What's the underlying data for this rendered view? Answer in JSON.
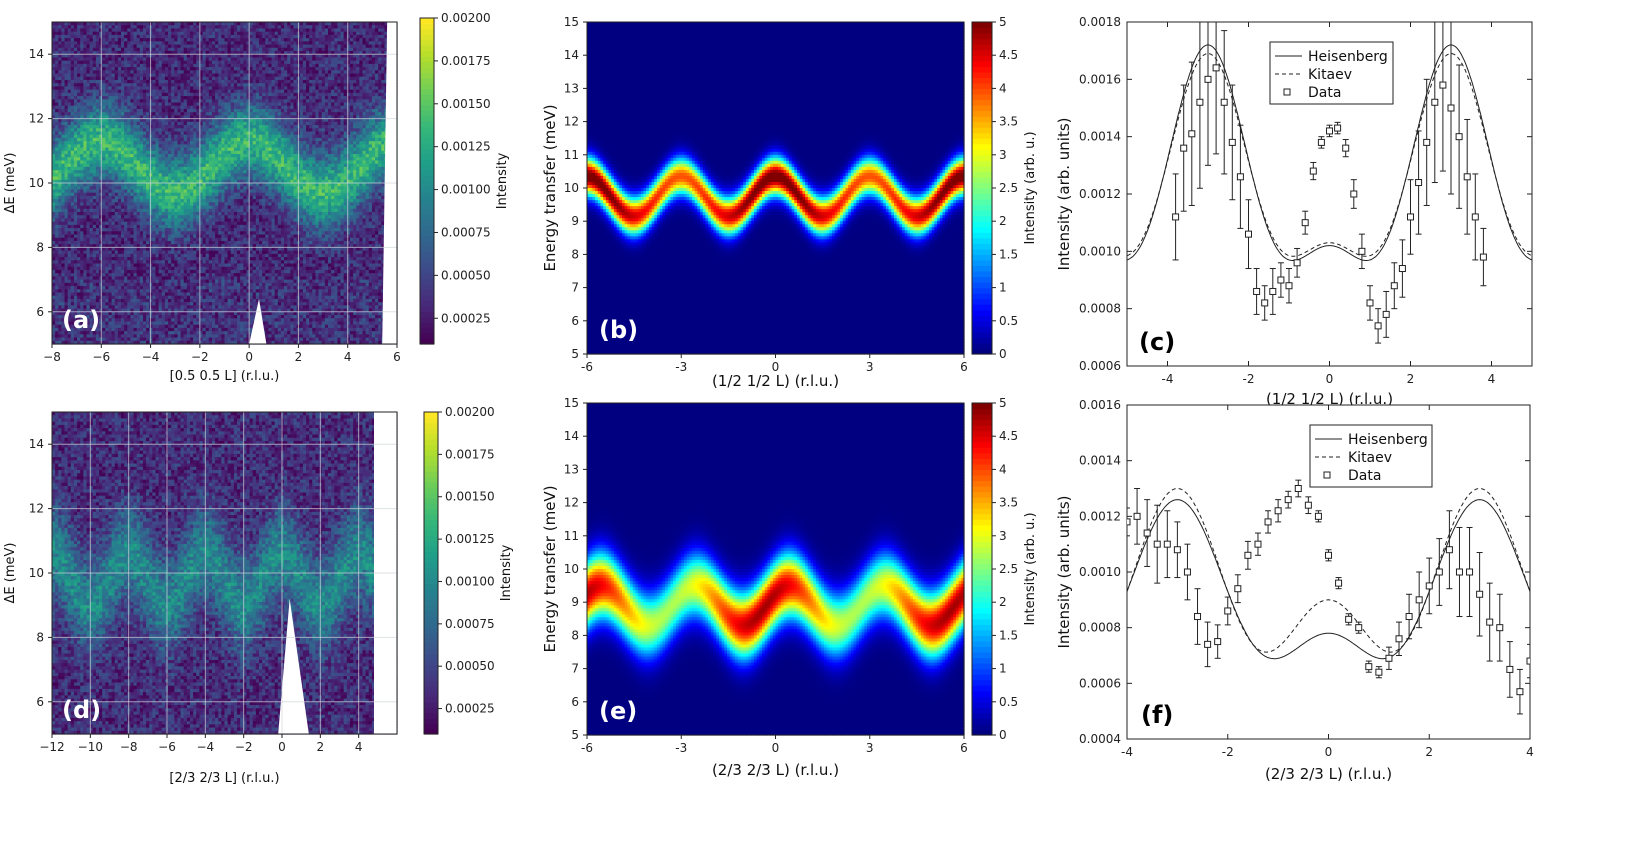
{
  "chart_data": [
    {
      "id": "a",
      "type": "heatmap",
      "panel_label": "(a)",
      "xlabel": "[0.5 0.5 L] (r.l.u.)",
      "ylabel": "ΔE (meV)",
      "xlim": [
        -8,
        6
      ],
      "ylim": [
        5,
        15
      ],
      "xticks": [
        "−8",
        "−6",
        "−4",
        "−2",
        "0",
        "2",
        "4",
        "6"
      ],
      "yticks": [
        "6",
        "8",
        "10",
        "12",
        "14"
      ],
      "colorbar": {
        "label": "Intensity",
        "range": [
          0.0001,
          0.002
        ],
        "ticks": [
          "0.00025",
          "0.00050",
          "0.00075",
          "0.00100",
          "0.00125",
          "0.00150",
          "0.00175",
          "0.00200"
        ]
      },
      "colormap": "viridis",
      "dispersion": {
        "center_meV": 10.5,
        "amplitude_meV": 0.8,
        "period_rlu": 6
      }
    },
    {
      "id": "b",
      "type": "heatmap",
      "panel_label": "(b)",
      "xlabel": "(1/2  1/2  L)  (r.l.u.)",
      "ylabel": "Energy transfer (meV)",
      "xlim": [
        -6,
        6
      ],
      "ylim": [
        5,
        15
      ],
      "xticks": [
        "-6",
        "-3",
        "0",
        "3",
        "6"
      ],
      "yticks": [
        "5",
        "6",
        "7",
        "8",
        "9",
        "10",
        "11",
        "12",
        "13",
        "14",
        "15"
      ],
      "colorbar": {
        "label": "Intensity (arb. u.)",
        "range": [
          0,
          5
        ],
        "ticks": [
          "0",
          "0.5",
          "1",
          "1.5",
          "2",
          "2.5",
          "3",
          "3.5",
          "4",
          "4.5",
          "5"
        ]
      },
      "colormap": "jet",
      "dispersion": {
        "center_meV": 9.75,
        "amplitude_meV": 0.6,
        "period_rlu": 3
      }
    },
    {
      "id": "c",
      "type": "line",
      "panel_label": "(c)",
      "xlabel": "(1/2 1/2 L)  (r.l.u.)",
      "ylabel": "Intensity (arb. units)",
      "xlim": [
        -5,
        5
      ],
      "ylim": [
        0.0006,
        0.0018
      ],
      "xticks": [
        "-4",
        "-2",
        "0",
        "2",
        "4"
      ],
      "yticks": [
        "0.0006",
        "0.0008",
        "0.0010",
        "0.0012",
        "0.0014",
        "0.0016",
        "0.0018"
      ],
      "legend": [
        "Heisenberg",
        "Kitaev",
        "Data"
      ],
      "series": [
        {
          "name": "Heisenberg",
          "model": {
            "mean": 0.00122,
            "a3": 0.00035,
            "a6": 0.00015
          }
        },
        {
          "name": "Kitaev",
          "model": {
            "mean": 0.00122,
            "a3": 0.00033,
            "a6": 0.00014
          }
        },
        {
          "name": "Data",
          "x": [
            -3.8,
            -3.6,
            -3.4,
            -3.2,
            -3.0,
            -2.8,
            -2.6,
            -2.4,
            -2.2,
            -2.0,
            -1.8,
            -1.6,
            -1.4,
            -1.2,
            -1.0,
            -0.8,
            -0.6,
            -0.4,
            -0.2,
            0.0,
            0.2,
            0.4,
            0.6,
            0.8,
            1.0,
            1.2,
            1.4,
            1.6,
            1.8,
            2.0,
            2.2,
            2.4,
            2.6,
            2.8,
            3.0,
            3.2,
            3.4,
            3.6,
            3.8
          ],
          "y": [
            0.00112,
            0.00136,
            0.00141,
            0.00152,
            0.0016,
            0.00164,
            0.00152,
            0.00138,
            0.00126,
            0.00106,
            0.00086,
            0.00082,
            0.00086,
            0.0009,
            0.00088,
            0.00096,
            0.0011,
            0.00128,
            0.00138,
            0.00142,
            0.00143,
            0.00136,
            0.0012,
            0.001,
            0.00082,
            0.00074,
            0.00078,
            0.00088,
            0.00094,
            0.00112,
            0.00124,
            0.00138,
            0.00152,
            0.00158,
            0.0015,
            0.0014,
            0.00126,
            0.00112,
            0.00098
          ],
          "err": [
            0.00015,
            0.00022,
            0.00025,
            0.0003,
            0.0003,
            0.0003,
            0.00025,
            0.0002,
            0.00018,
            0.00012,
            8e-05,
            6e-05,
            8e-05,
            6e-05,
            6e-05,
            5e-05,
            4e-05,
            3e-05,
            2e-05,
            2e-05,
            2e-05,
            3e-05,
            5e-05,
            6e-05,
            6e-05,
            6e-05,
            8e-05,
            8e-05,
            0.0001,
            0.00013,
            0.00018,
            0.00022,
            0.00028,
            0.0003,
            0.0003,
            0.00025,
            0.0002,
            0.00015,
            0.0001
          ]
        }
      ]
    },
    {
      "id": "d",
      "type": "heatmap",
      "panel_label": "(d)",
      "xlabel": "[2/3 2/3 L] (r.l.u.)",
      "ylabel": "ΔE (meV)",
      "xlim": [
        -12,
        6
      ],
      "ylim": [
        5,
        15
      ],
      "xticks": [
        "−12",
        "−10",
        "−8",
        "−6",
        "−4",
        "−2",
        "0",
        "2",
        "4"
      ],
      "yticks": [
        "6",
        "8",
        "10",
        "12",
        "14"
      ],
      "colorbar": {
        "label": "Intensity",
        "range": [
          0.0001,
          0.002
        ],
        "ticks": [
          "0.00025",
          "0.00050",
          "0.00075",
          "0.00100",
          "0.00125",
          "0.00150",
          "0.00175",
          "0.00200"
        ]
      },
      "colormap": "viridis",
      "dispersion": {
        "center_meV": 9.8,
        "amplitude_meV": 0.8,
        "period_rlu": 4
      }
    },
    {
      "id": "e",
      "type": "heatmap",
      "panel_label": "(e)",
      "xlabel": "(2/3  2/3  L)  (r.l.u.)",
      "ylabel": "Energy transfer (meV)",
      "xlim": [
        -6,
        6
      ],
      "ylim": [
        5,
        15
      ],
      "xticks": [
        "-6",
        "-3",
        "0",
        "3",
        "6"
      ],
      "yticks": [
        "5",
        "6",
        "7",
        "8",
        "9",
        "10",
        "11",
        "12",
        "13",
        "14",
        "15"
      ],
      "colorbar": {
        "label": "Intensity (arb. u.)",
        "range": [
          0,
          5
        ],
        "ticks": [
          "0",
          "0.5",
          "1",
          "1.5",
          "2",
          "2.5",
          "3",
          "3.5",
          "4",
          "4.5",
          "5"
        ]
      },
      "colormap": "jet",
      "dispersion": {
        "center_meV": 8.9,
        "amplitude_meV": 0.6,
        "period_rlu": 3
      }
    },
    {
      "id": "f",
      "type": "line",
      "panel_label": "(f)",
      "xlabel": "(2/3 2/3 L)  (r.l.u.)",
      "ylabel": "Intensity (arb. units)",
      "xlim": [
        -4,
        4
      ],
      "ylim": [
        0.0004,
        0.0016
      ],
      "xticks": [
        "-4",
        "-2",
        "0",
        "2",
        "4"
      ],
      "yticks": [
        "0.0004",
        "0.0006",
        "0.0008",
        "0.0010",
        "0.0012",
        "0.0014",
        "0.0016"
      ],
      "legend": [
        "Heisenberg",
        "Kitaev",
        "Data"
      ],
      "series": [
        {
          "name": "Heisenberg",
          "model": {
            "mean": 0.00098,
            "a1": 0.00024,
            "a2": 0.00014
          }
        },
        {
          "name": "Kitaev",
          "model": {
            "mean": 0.00102,
            "a1": 0.0002,
            "a2": 0.00018
          }
        },
        {
          "name": "Data",
          "x": [
            -4.0,
            -3.8,
            -3.6,
            -3.4,
            -3.2,
            -3.0,
            -2.8,
            -2.6,
            -2.4,
            -2.2,
            -2.0,
            -1.8,
            -1.6,
            -1.4,
            -1.2,
            -1.0,
            -0.8,
            -0.6,
            -0.4,
            -0.2,
            0.0,
            0.2,
            0.4,
            0.6,
            0.8,
            1.0,
            1.2,
            1.4,
            1.6,
            1.8,
            2.0,
            2.2,
            2.4,
            2.6,
            2.8,
            3.0,
            3.2,
            3.4,
            3.6,
            3.8,
            4.0
          ],
          "y": [
            0.00118,
            0.0012,
            0.00114,
            0.0011,
            0.0011,
            0.00108,
            0.001,
            0.00084,
            0.00074,
            0.00075,
            0.00086,
            0.00094,
            0.00106,
            0.0011,
            0.00118,
            0.00122,
            0.00126,
            0.0013,
            0.00124,
            0.0012,
            0.00106,
            0.00096,
            0.00083,
            0.0008,
            0.00066,
            0.00064,
            0.00069,
            0.00076,
            0.00084,
            0.0009,
            0.00095,
            0.001,
            0.00108,
            0.001,
            0.001,
            0.00092,
            0.00082,
            0.0008,
            0.00065,
            0.00057,
            0.00068
          ],
          "err": [
            5e-05,
            0.0001,
            0.00012,
            0.00014,
            0.00012,
            0.0001,
            0.0001,
            0.0001,
            8e-05,
            6e-05,
            5e-05,
            5e-05,
            5e-05,
            4e-05,
            4e-05,
            4e-05,
            3e-05,
            3e-05,
            3e-05,
            2e-05,
            2e-05,
            2e-05,
            2e-05,
            2e-05,
            2e-05,
            2e-05,
            4e-05,
            6e-05,
            8e-05,
            0.0001,
            0.0001,
            0.00012,
            0.00014,
            0.00016,
            0.00016,
            0.00015,
            0.00014,
            0.00012,
            0.0001,
            8e-05,
            6e-05
          ]
        }
      ]
    }
  ]
}
